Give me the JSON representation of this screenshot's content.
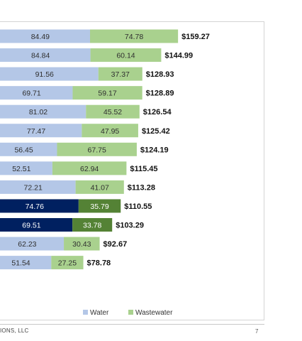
{
  "chart_data": {
    "type": "bar",
    "orientation": "horizontal",
    "stacked": true,
    "series": [
      {
        "name": "Water",
        "values": [
          84.49,
          84.84,
          91.56,
          69.71,
          81.02,
          77.47,
          56.45,
          52.51,
          72.21,
          74.76,
          69.51,
          62.23,
          51.54
        ]
      },
      {
        "name": "Wastewater",
        "values": [
          74.78,
          60.14,
          37.37,
          59.17,
          45.52,
          47.95,
          67.75,
          62.94,
          41.07,
          35.79,
          33.78,
          30.43,
          27.25
        ]
      }
    ],
    "totals": [
      "$159.27",
      "$144.99",
      "$128.93",
      "$128.89",
      "$126.54",
      "$125.42",
      "$124.19",
      "$115.45",
      "$113.28",
      "$110.55",
      "$103.29",
      "$92.67",
      "$78.78"
    ],
    "highlighted_rows": [
      9,
      10
    ],
    "colors": {
      "water": "#b4c7e7",
      "wastewater": "#a9d18e",
      "water_highlight": "#002060",
      "wastewater_highlight": "#548235"
    },
    "legend": {
      "position": "bottom",
      "entries": [
        "Water",
        "Wastewater"
      ]
    },
    "grid": false
  },
  "footer": {
    "text": "IONS, LLC",
    "page_number": "7"
  }
}
